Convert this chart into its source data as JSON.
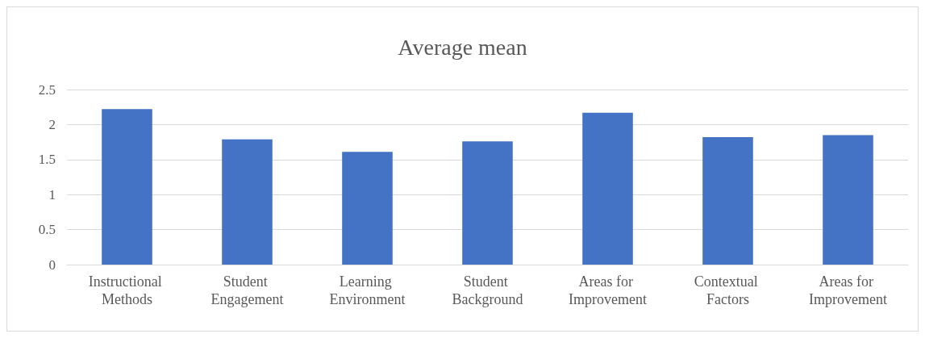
{
  "chart_data": {
    "type": "bar",
    "title": "Average mean",
    "categories": [
      "Instructional Methods",
      "Student Engagement",
      "Learning Environment",
      "Student Background",
      "Areas for Improvement",
      "Contextual Factors",
      "Areas for Improvement"
    ],
    "values": [
      2.22,
      1.79,
      1.61,
      1.76,
      2.17,
      1.82,
      1.85
    ],
    "color": "#4472c4",
    "ylim": [
      0,
      2.5
    ],
    "yticks": [
      0,
      0.5,
      1,
      1.5,
      2,
      2.5
    ],
    "grid": "y"
  }
}
